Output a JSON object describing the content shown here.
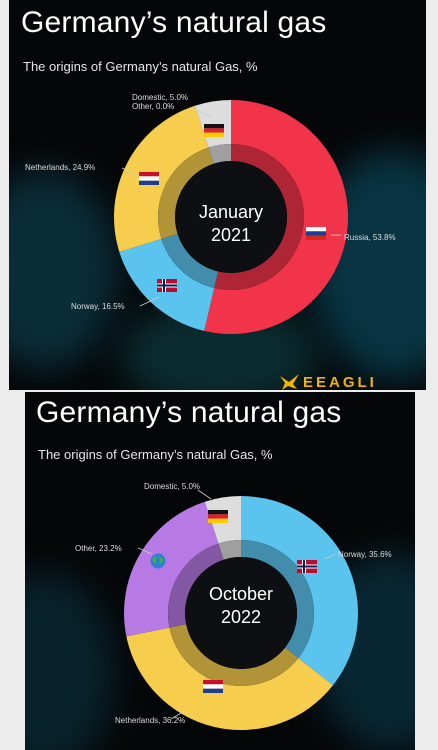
{
  "charts": [
    {
      "title": "Germany’s natural gas",
      "subtitle": "The origins of Germany’s natural Gas, %",
      "center_line1": "January",
      "center_line2": "2021",
      "labels": {
        "domestic": "Domestic, 5.0%",
        "other": "Other, 0.0%",
        "netherlands": "Netherlands, 24.9%",
        "norway": "Norway, 16.5%",
        "russia": "Russia, 53.8%"
      },
      "watermark": "EEAGLI"
    },
    {
      "title": "Germany’s natural gas",
      "subtitle": "The origins of Germany’s natural Gas, %",
      "center_line1": "October",
      "center_line2": "2022",
      "labels": {
        "domestic": "Domestic, 5.0%",
        "other": "Other, 23.2%",
        "norway": "Norway, 35.6%",
        "netherlands": "Netherlands, 36.2%"
      }
    }
  ],
  "chart_data": [
    {
      "type": "pie",
      "title": "Germany’s natural gas",
      "subtitle": "The origins of Germany’s natural Gas, %",
      "center_label": "January 2021",
      "slices": [
        {
          "label": "Russia",
          "value": 53.8,
          "color": "#f2344b"
        },
        {
          "label": "Norway",
          "value": 16.5,
          "color": "#5bc4ee"
        },
        {
          "label": "Netherlands",
          "value": 24.9,
          "color": "#f7cd4e"
        },
        {
          "label": "Domestic",
          "value": 5.0,
          "color": "#dddddd"
        },
        {
          "label": "Other",
          "value": 0.0,
          "color": "#b779e4"
        }
      ]
    },
    {
      "type": "pie",
      "title": "Germany’s natural gas",
      "subtitle": "The origins of Germany’s natural Gas, %",
      "center_label": "October 2022",
      "slices": [
        {
          "label": "Norway",
          "value": 35.6,
          "color": "#5bc4ee"
        },
        {
          "label": "Netherlands",
          "value": 36.2,
          "color": "#f7cd4e"
        },
        {
          "label": "Other",
          "value": 23.2,
          "color": "#b779e4"
        },
        {
          "label": "Domestic",
          "value": 5.0,
          "color": "#dddddd"
        }
      ]
    }
  ]
}
